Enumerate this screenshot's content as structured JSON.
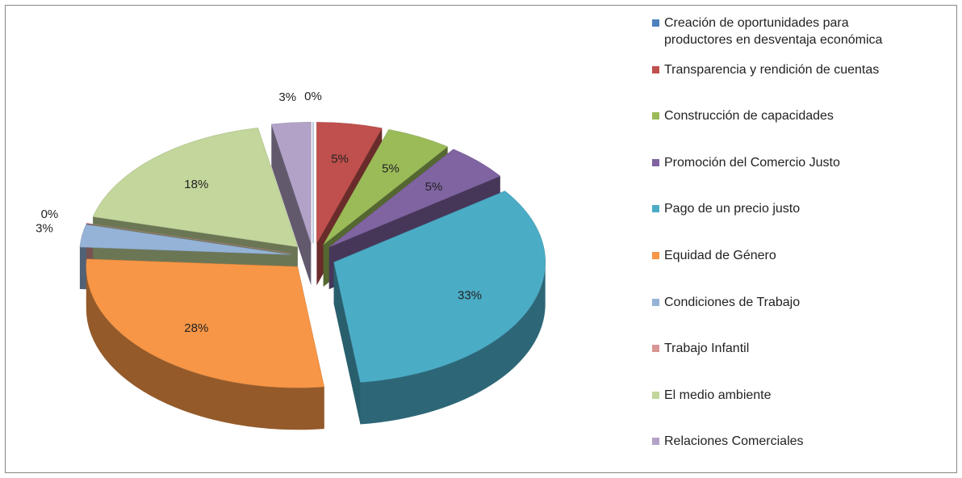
{
  "chart_data": {
    "type": "pie",
    "categories": [
      "Creación de oportunidades para productores en desventaja económica",
      "Transparencia y rendición de cuentas",
      "Construcción de capacidades",
      "Promoción del Comercio Justo",
      "Pago de un precio justo",
      "Equidad de Género",
      "Condiciones de Trabajo",
      "Trabajo Infantil",
      "El medio ambiente",
      "Relaciones Comerciales"
    ],
    "values": [
      0,
      5,
      5,
      5,
      33,
      28,
      3,
      0,
      18,
      3
    ],
    "value_labels": [
      "0%",
      "5%",
      "5%",
      "5%",
      "33%",
      "28%",
      "3%",
      "0%",
      "18%",
      "3%"
    ],
    "colors": [
      "#4F81BD",
      "#C0504D",
      "#9BBB59",
      "#8064A2",
      "#4BACC6",
      "#F79646",
      "#95B3D7",
      "#D99694",
      "#C3D69B",
      "#B2A2C7"
    ],
    "legend": "right"
  }
}
